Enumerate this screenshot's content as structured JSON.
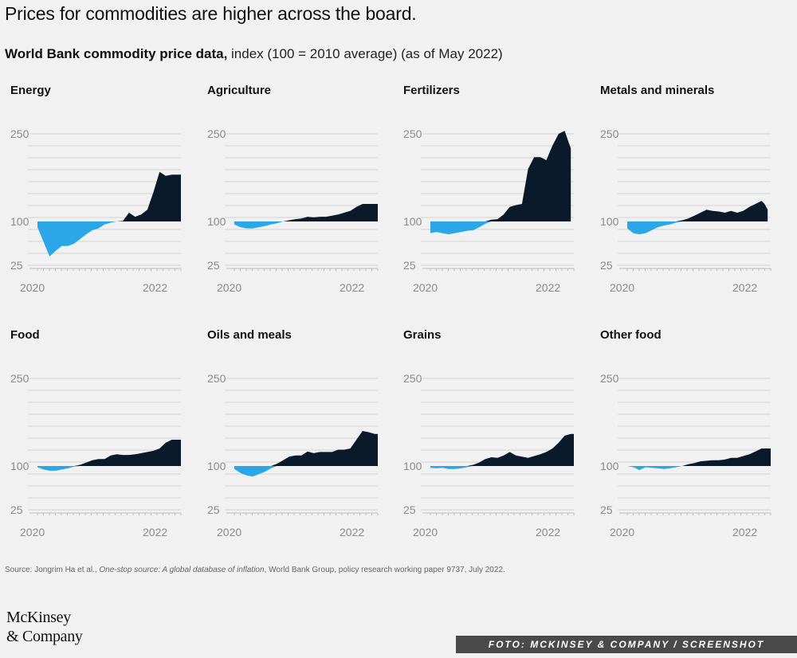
{
  "header": {
    "title": "Prices for commodities are higher across the board.",
    "subtitle_bold": "World Bank commodity price data,",
    "subtitle_rest": " index (100 = 2010 average) (as of May 2022)"
  },
  "colors": {
    "below": "#2ba7e8",
    "above": "#0b1a2a",
    "grid": "#d3d3d3",
    "tick": "#8a8a8a"
  },
  "chart_data": [
    {
      "type": "area",
      "title": "Energy",
      "x": [
        2020.0,
        2020.1,
        2020.2,
        2020.3,
        2020.4,
        2020.5,
        2020.6,
        2020.7,
        2020.8,
        2020.9,
        2021.0,
        2021.1,
        2021.2,
        2021.3,
        2021.4,
        2021.5,
        2021.6,
        2021.7,
        2021.8,
        2021.9,
        2022.0,
        2022.1,
        2022.2,
        2022.3,
        2022.35
      ],
      "values": [
        90,
        65,
        40,
        50,
        58,
        58,
        62,
        70,
        78,
        85,
        88,
        95,
        98,
        100,
        101,
        115,
        108,
        112,
        120,
        150,
        185,
        178,
        180,
        180,
        180
      ],
      "yticks": [
        250,
        100,
        25
      ],
      "xticks": [
        "2020",
        "2022"
      ],
      "baseline": 100
    },
    {
      "type": "area",
      "title": "Agriculture",
      "x": [
        2020.0,
        2020.1,
        2020.2,
        2020.3,
        2020.4,
        2020.5,
        2020.6,
        2020.7,
        2020.8,
        2020.9,
        2021.0,
        2021.1,
        2021.2,
        2021.3,
        2021.4,
        2021.5,
        2021.6,
        2021.7,
        2021.8,
        2021.9,
        2022.0,
        2022.1,
        2022.2,
        2022.3,
        2022.35
      ],
      "values": [
        95,
        90,
        88,
        88,
        90,
        92,
        95,
        97,
        100,
        102,
        104,
        105,
        108,
        107,
        108,
        108,
        110,
        112,
        115,
        118,
        125,
        130,
        130,
        130,
        130
      ],
      "yticks": [
        250,
        100,
        25
      ],
      "xticks": [
        "2020",
        "2022"
      ],
      "baseline": 100
    },
    {
      "type": "area",
      "title": "Fertilizers",
      "x": [
        2020.0,
        2020.1,
        2020.2,
        2020.3,
        2020.4,
        2020.5,
        2020.6,
        2020.7,
        2020.8,
        2020.9,
        2021.0,
        2021.1,
        2021.2,
        2021.3,
        2021.4,
        2021.5,
        2021.6,
        2021.7,
        2021.8,
        2021.9,
        2022.0,
        2022.1,
        2022.2,
        2022.25,
        2022.3
      ],
      "values": [
        80,
        82,
        80,
        78,
        80,
        82,
        84,
        85,
        90,
        96,
        103,
        104,
        112,
        125,
        128,
        130,
        190,
        210,
        210,
        205,
        230,
        250,
        255,
        240,
        225
      ],
      "yticks": [
        250,
        100,
        25
      ],
      "xticks": [
        "2020",
        "2022"
      ],
      "baseline": 100
    },
    {
      "type": "area",
      "title": "Metals and minerals",
      "x": [
        2020.0,
        2020.1,
        2020.2,
        2020.3,
        2020.4,
        2020.5,
        2020.6,
        2020.7,
        2020.8,
        2020.9,
        2021.0,
        2021.1,
        2021.2,
        2021.3,
        2021.4,
        2021.5,
        2021.6,
        2021.7,
        2021.8,
        2021.9,
        2022.0,
        2022.1,
        2022.2,
        2022.25,
        2022.3
      ],
      "values": [
        88,
        80,
        78,
        80,
        85,
        90,
        93,
        95,
        98,
        102,
        105,
        110,
        115,
        120,
        118,
        117,
        115,
        118,
        115,
        118,
        125,
        130,
        135,
        130,
        120
      ],
      "yticks": [
        250,
        100,
        25
      ],
      "xticks": [
        "2020",
        "2022"
      ],
      "baseline": 100
    },
    {
      "type": "area",
      "title": "Food",
      "x": [
        2020.0,
        2020.1,
        2020.2,
        2020.3,
        2020.4,
        2020.5,
        2020.6,
        2020.7,
        2020.8,
        2020.9,
        2021.0,
        2021.1,
        2021.2,
        2021.3,
        2021.4,
        2021.5,
        2021.6,
        2021.7,
        2021.8,
        2021.9,
        2022.0,
        2022.1,
        2022.2,
        2022.3,
        2022.35
      ],
      "values": [
        98,
        94,
        92,
        92,
        94,
        96,
        99,
        102,
        106,
        110,
        112,
        112,
        118,
        120,
        119,
        119,
        120,
        122,
        124,
        126,
        130,
        140,
        145,
        145,
        145
      ],
      "yticks": [
        250,
        100,
        25
      ],
      "xticks": [
        "2020",
        "2022"
      ],
      "baseline": 100
    },
    {
      "type": "area",
      "title": "Oils and meals",
      "x": [
        2020.0,
        2020.1,
        2020.2,
        2020.3,
        2020.4,
        2020.5,
        2020.6,
        2020.7,
        2020.8,
        2020.9,
        2021.0,
        2021.1,
        2021.2,
        2021.3,
        2021.4,
        2021.5,
        2021.6,
        2021.7,
        2021.8,
        2021.9,
        2022.0,
        2022.1,
        2022.2,
        2022.3,
        2022.35
      ],
      "values": [
        95,
        88,
        84,
        82,
        86,
        90,
        96,
        104,
        110,
        116,
        118,
        118,
        125,
        122,
        124,
        124,
        124,
        128,
        128,
        130,
        145,
        160,
        158,
        155,
        155
      ],
      "yticks": [
        250,
        100,
        25
      ],
      "xticks": [
        "2020",
        "2022"
      ],
      "baseline": 100
    },
    {
      "type": "area",
      "title": "Grains",
      "x": [
        2020.0,
        2020.1,
        2020.2,
        2020.3,
        2020.4,
        2020.5,
        2020.6,
        2020.7,
        2020.8,
        2020.9,
        2021.0,
        2021.1,
        2021.2,
        2021.3,
        2021.4,
        2021.5,
        2021.6,
        2021.7,
        2021.8,
        2021.9,
        2022.0,
        2022.1,
        2022.2,
        2022.3,
        2022.35
      ],
      "values": [
        97,
        96,
        97,
        95,
        95,
        96,
        98,
        102,
        106,
        112,
        115,
        114,
        118,
        124,
        118,
        116,
        114,
        117,
        120,
        124,
        130,
        140,
        152,
        155,
        155
      ],
      "yticks": [
        250,
        100,
        25
      ],
      "xticks": [
        "2020",
        "2022"
      ],
      "baseline": 100
    },
    {
      "type": "area",
      "title": "Other food",
      "x": [
        2020.0,
        2020.1,
        2020.2,
        2020.3,
        2020.4,
        2020.5,
        2020.6,
        2020.7,
        2020.8,
        2020.9,
        2021.0,
        2021.1,
        2021.2,
        2021.3,
        2021.4,
        2021.5,
        2021.6,
        2021.7,
        2021.8,
        2021.9,
        2022.0,
        2022.1,
        2022.2,
        2022.3,
        2022.35
      ],
      "values": [
        100,
        98,
        93,
        98,
        97,
        96,
        95,
        96,
        98,
        100,
        103,
        105,
        108,
        109,
        110,
        110,
        111,
        114,
        114,
        117,
        120,
        125,
        130,
        130,
        130
      ],
      "yticks": [
        250,
        100,
        25
      ],
      "xticks": [
        "2020",
        "2022"
      ],
      "baseline": 100
    }
  ],
  "source": {
    "prefix": "Source: Jongrim Ha et al., ",
    "title_italic": "One-stop source: A global database of inflation",
    "rest": ", World Bank Group, policy research working paper 9737, July 2022."
  },
  "logo": {
    "line1": "McKinsey",
    "line2": "& Company"
  },
  "photo_credit": "FOTO: MCKINSEY & COMPANY / SCREENSHOT"
}
